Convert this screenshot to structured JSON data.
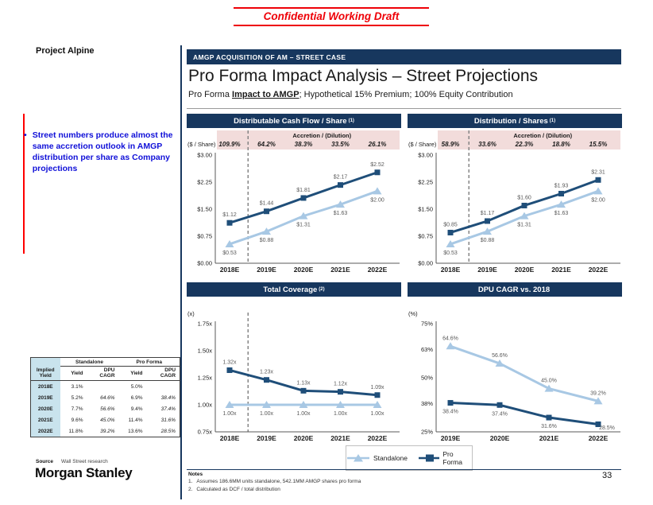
{
  "banner": {
    "text": "Confidential Working Draft"
  },
  "project_label": "Project Alpine",
  "kicker": "AMGP ACQUISITION OF AM – STREET CASE",
  "page_title": "Pro Forma Impact Analysis – Street Projections",
  "subtitle": {
    "prefix": "Pro Forma ",
    "emphasis": "Impact to AMGP",
    "suffix": "; Hypothetical 15% Premium; 100% Equity Contribution"
  },
  "bullet": "Street numbers produce almost the same accretion outlook in AMGP distribution per share as Company projections",
  "colors": {
    "navy": "#17375E",
    "pro_forma_line": "#1F4E79",
    "standalone_line": "#A8C8E4",
    "accretion_banner_pink": "#F2DCDB",
    "table_header_blue": "#C9E3ED",
    "bullet_blue": "#1010D8",
    "banner_red": "#EE0007"
  },
  "chart_data": [
    {
      "type": "line",
      "title": "Distributable Cash Flow / Share",
      "title_sup": "(1)",
      "unit": "($ / Share)",
      "accretion": {
        "label": "Accretion / (Dilution)",
        "values": [
          "109.9%",
          "64.2%",
          "38.3%",
          "33.5%",
          "26.1%"
        ]
      },
      "categories": [
        "2018E",
        "2019E",
        "2020E",
        "2021E",
        "2022E"
      ],
      "ylim": [
        0,
        3
      ],
      "yticks": [
        {
          "v": 3,
          "label": "$3.00"
        },
        {
          "v": 2.25,
          "label": "$2.25"
        },
        {
          "v": 1.5,
          "label": "$1.50"
        },
        {
          "v": 0.75,
          "label": "$0.75"
        },
        {
          "v": 0,
          "label": "$0.00"
        }
      ],
      "dashed_after_first": true,
      "series": [
        {
          "name": "Standalone",
          "color": "light",
          "marker": "triangle",
          "label_pos": "below",
          "values": [
            0.53,
            0.88,
            1.31,
            1.63,
            2.0
          ],
          "labels": [
            "$0.53",
            "$0.88",
            "$1.31",
            "$1.63",
            "$2.00"
          ]
        },
        {
          "name": "Pro Forma",
          "color": "dark",
          "marker": "square",
          "label_pos": "above",
          "values": [
            1.12,
            1.44,
            1.81,
            2.17,
            2.52
          ],
          "labels": [
            "$1.12",
            "$1.44",
            "$1.81",
            "$2.17",
            "$2.52"
          ]
        }
      ]
    },
    {
      "type": "line",
      "title": "Distribution / Shares",
      "title_sup": "(1)",
      "unit": "($ / Share)",
      "accretion": {
        "label": "Accretion / (Dilution)",
        "values": [
          "58.9%",
          "33.6%",
          "22.3%",
          "18.8%",
          "15.5%"
        ]
      },
      "categories": [
        "2018E",
        "2019E",
        "2020E",
        "2021E",
        "2022E"
      ],
      "ylim": [
        0,
        3
      ],
      "yticks": [
        {
          "v": 3,
          "label": "$3.00"
        },
        {
          "v": 2.25,
          "label": "$2.25"
        },
        {
          "v": 1.5,
          "label": "$1.50"
        },
        {
          "v": 0.75,
          "label": "$0.75"
        },
        {
          "v": 0,
          "label": "$0.00"
        }
      ],
      "dashed_after_first": true,
      "series": [
        {
          "name": "Standalone",
          "color": "light",
          "marker": "triangle",
          "label_pos": "below",
          "values": [
            0.53,
            0.88,
            1.31,
            1.63,
            2.0
          ],
          "labels": [
            "$0.53",
            "$0.88",
            "$1.31",
            "$1.63",
            "$2.00"
          ]
        },
        {
          "name": "Pro Forma",
          "color": "dark",
          "marker": "square",
          "label_pos": "above",
          "values": [
            0.85,
            1.17,
            1.6,
            1.93,
            2.31
          ],
          "labels": [
            "$0.85",
            "$1.17",
            "$1.60",
            "$1.93",
            "$2.31"
          ]
        }
      ]
    },
    {
      "type": "line",
      "title": "Total Coverage",
      "title_sup": "(2)",
      "unit": "(x)",
      "categories": [
        "2018E",
        "2019E",
        "2020E",
        "2021E",
        "2022E"
      ],
      "ylim": [
        0.75,
        1.75
      ],
      "yticks": [
        {
          "v": 1.75,
          "label": "1.75x"
        },
        {
          "v": 1.5,
          "label": "1.50x"
        },
        {
          "v": 1.25,
          "label": "1.25x"
        },
        {
          "v": 1.0,
          "label": "1.00x"
        },
        {
          "v": 0.75,
          "label": "0.75x"
        }
      ],
      "dashed_after_first": true,
      "series": [
        {
          "name": "Standalone",
          "color": "light",
          "marker": "triangle",
          "label_pos": "below",
          "values": [
            1.0,
            1.0,
            1.0,
            1.0,
            1.0
          ],
          "labels": [
            "1.00x",
            "1.00x",
            "1.00x",
            "1.00x",
            "1.00x"
          ]
        },
        {
          "name": "Pro Forma",
          "color": "dark",
          "marker": "square",
          "label_pos": "above",
          "values": [
            1.32,
            1.23,
            1.13,
            1.12,
            1.09
          ],
          "labels": [
            "1.32x",
            "1.23x",
            "1.13x",
            "1.12x",
            "1.09x"
          ]
        }
      ]
    },
    {
      "type": "line",
      "title": "DPU CAGR vs. 2018",
      "title_sup": "",
      "unit": "(%)",
      "categories": [
        "2019E",
        "2020E",
        "2021E",
        "2022E"
      ],
      "ylim": [
        25,
        75
      ],
      "yticks": [
        {
          "v": 75,
          "label": "75%"
        },
        {
          "v": 63,
          "label": "63%"
        },
        {
          "v": 50,
          "label": "50%"
        },
        {
          "v": 38,
          "label": "38%"
        },
        {
          "v": 25,
          "label": "25%"
        }
      ],
      "dashed_after_first": false,
      "series": [
        {
          "name": "Standalone",
          "color": "light",
          "marker": "triangle",
          "label_pos": "above",
          "values": [
            64.6,
            56.6,
            45.0,
            39.2
          ],
          "labels": [
            "64.6%",
            "56.6%",
            "45.0%",
            "39.2%"
          ]
        },
        {
          "name": "Pro Forma",
          "color": "dark",
          "marker": "square",
          "label_pos": "below",
          "values": [
            38.4,
            37.4,
            31.6,
            28.5
          ],
          "labels": [
            "38.4%",
            "37.4%",
            "31.6%",
            "28.5%"
          ]
        }
      ]
    }
  ],
  "table": {
    "row_header": "Implied Yield",
    "groups": [
      "Standalone",
      "Pro Forma"
    ],
    "sub_columns": [
      "Yield",
      "DPU CAGR",
      "Yield",
      "DPU CAGR"
    ],
    "rows": [
      {
        "year": "2018E",
        "vals": [
          "3.1%",
          "",
          "5.0%",
          ""
        ]
      },
      {
        "year": "2019E",
        "vals": [
          "5.2%",
          "64.6%",
          "6.9%",
          "38.4%"
        ]
      },
      {
        "year": "2020E",
        "vals": [
          "7.7%",
          "56.6%",
          "9.4%",
          "37.4%"
        ]
      },
      {
        "year": "2021E",
        "vals": [
          "9.6%",
          "45.0%",
          "11.4%",
          "31.6%"
        ]
      },
      {
        "year": "2022E",
        "vals": [
          "11.8%",
          "39.2%",
          "13.6%",
          "28.5%"
        ]
      }
    ]
  },
  "legend": {
    "standalone": "Standalone",
    "pro_forma": "Pro Forma"
  },
  "footer": {
    "source_label": "Source",
    "source_text": "Wall Street research",
    "logo": "Morgan Stanley",
    "notes_title": "Notes",
    "notes": [
      {
        "num": "1.",
        "text": "Assumes 186.6MM units standalone, 542.1MM AMGP shares pro forma"
      },
      {
        "num": "2.",
        "text": "Calculated as DCF / total distribution"
      }
    ],
    "page_number": "33"
  }
}
